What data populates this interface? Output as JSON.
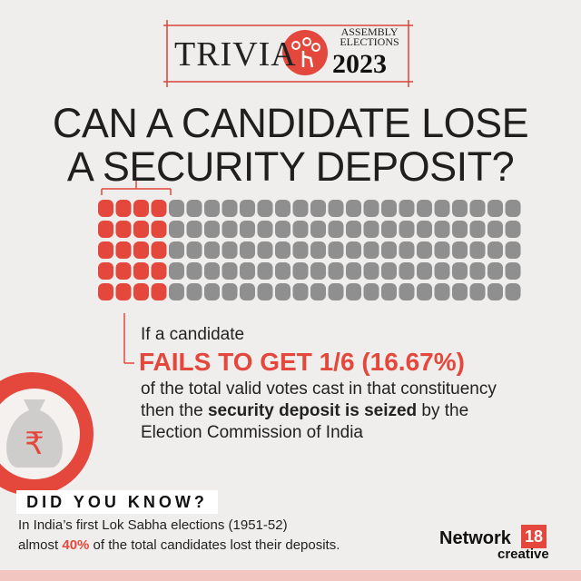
{
  "header": {
    "trivia": "TRIVIA",
    "event": "ASSEMBLY ELECTIONS",
    "year": "2023"
  },
  "title": [
    "CAN A CANDIDATE LOSE",
    "A SECURITY DEPOSIT?"
  ],
  "fact": {
    "intro": "If a candidate",
    "highlight": "FAILS TO GET 1/6 (16.67%)",
    "line1": "of the total valid votes cast in that constituency",
    "line2_start": "then the ",
    "line2_bold": "security deposit is seized",
    "line2_end": " by the",
    "line3": "Election Commission of India"
  },
  "did_you_know": {
    "label": "DID YOU KNOW?",
    "line1": "In India’s first Lok Sabha elections (1951-52)",
    "line2_start": "almost ",
    "line2_bold": "40%",
    "line2_end": " of the total candidates lost their deposits."
  },
  "brand": {
    "name": "Network",
    "number": "18",
    "sub": "creative"
  }
}
